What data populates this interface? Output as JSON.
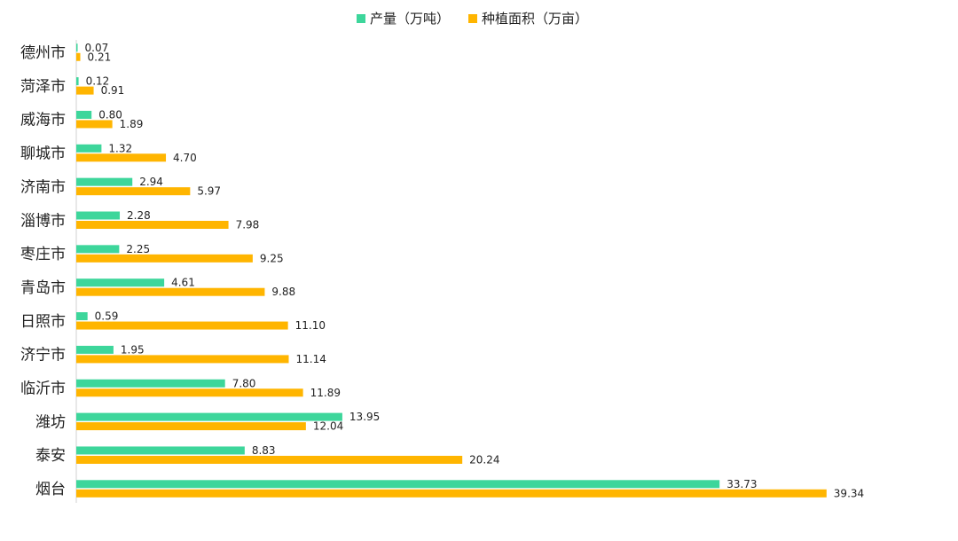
{
  "chart_data": {
    "type": "bar",
    "orientation": "horizontal",
    "categories": [
      "德州市",
      "菏泽市",
      "威海市",
      "聊城市",
      "济南市",
      "淄博市",
      "枣庄市",
      "青岛市",
      "日照市",
      "济宁市",
      "临沂市",
      "潍坊",
      "泰安",
      "烟台"
    ],
    "series": [
      {
        "name": "产量（万吨）",
        "color": "#3dd69b",
        "values": [
          0.07,
          0.12,
          0.8,
          1.32,
          2.94,
          2.28,
          2.25,
          4.61,
          0.59,
          1.95,
          7.8,
          13.95,
          8.83,
          33.73
        ],
        "labels": [
          "0.07",
          "0.12",
          "0.80",
          "1.32",
          "2.94",
          "2.28",
          "2.25",
          "4.61",
          "0.59",
          "1.95",
          "7.80",
          "13.95",
          "8.83",
          "33.73"
        ]
      },
      {
        "name": "种植面积（万亩）",
        "color": "#ffb500",
        "values": [
          0.21,
          0.91,
          1.89,
          4.7,
          5.97,
          7.98,
          9.25,
          9.88,
          11.1,
          11.14,
          11.89,
          12.04,
          20.24,
          39.34
        ],
        "labels": [
          "0.21",
          "0.91",
          "1.89",
          "4.70",
          "5.97",
          "7.98",
          "9.25",
          "9.88",
          "11.10",
          "11.14",
          "11.89",
          "12.04",
          "20.24",
          "39.34"
        ]
      }
    ],
    "xlim": [
      0,
      40
    ],
    "legend_position": "top-center",
    "grid": false,
    "axis_color": "#d0d0d0"
  }
}
